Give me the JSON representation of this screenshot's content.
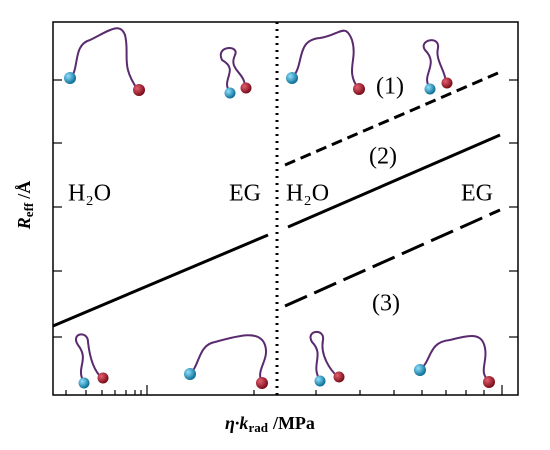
{
  "regions": [
    {
      "label": "H₂O"
    },
    {
      "label": "EG"
    },
    {
      "label": "H₂O"
    },
    {
      "label": "EG"
    }
  ],
  "curves": [
    {
      "label": "(1)"
    },
    {
      "label": "(2)"
    },
    {
      "label": "(3)"
    }
  ],
  "y_axis": {
    "symbol": "R",
    "subscript": "eff",
    "unit": "/Å"
  },
  "x_axis": {
    "symbol": "η·k",
    "subscript": "rad",
    "unit": "/MPa"
  }
}
